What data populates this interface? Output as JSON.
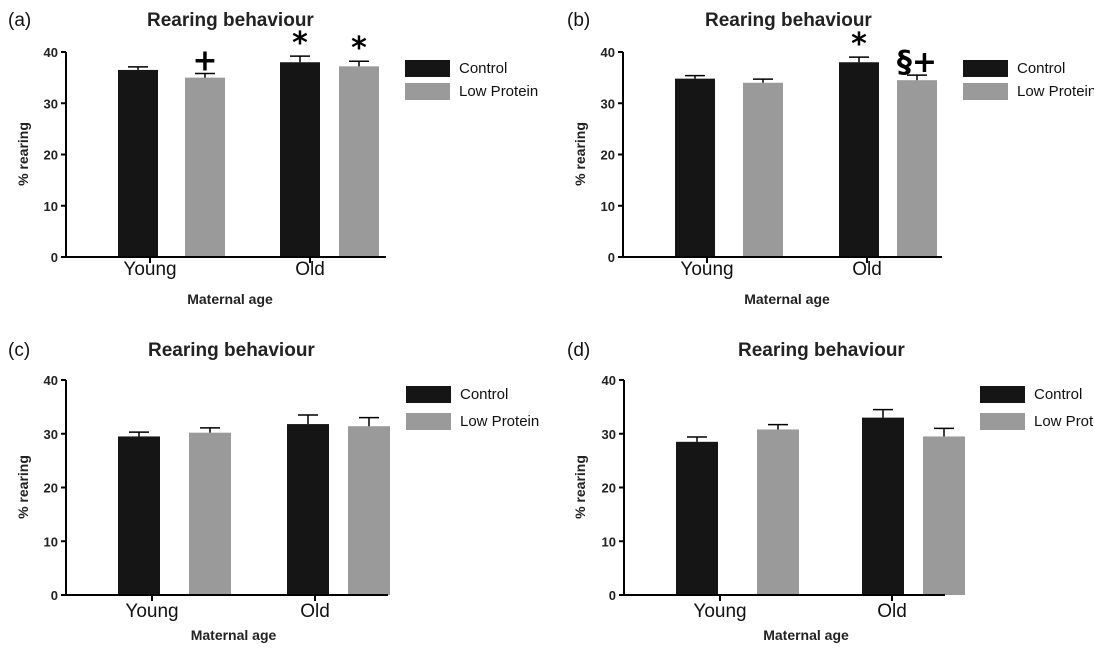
{
  "colors": {
    "control": "#151515",
    "low_protein": "#9a9a9a",
    "axis": "#000000"
  },
  "chart_data": [
    {
      "panel_label": "(a)",
      "type": "bar",
      "title": "Rearing behaviour",
      "xlabel": "Maternal age",
      "ylabel": "% rearing",
      "ylim": [
        0,
        40
      ],
      "yticks": [
        "0",
        "10",
        "20",
        "30",
        "40"
      ],
      "categories": [
        "Young",
        "Old"
      ],
      "series": [
        {
          "name": "Control",
          "values": [
            36.5,
            38.0
          ],
          "errors": [
            0.6,
            1.2
          ],
          "marks": [
            "",
            "*"
          ]
        },
        {
          "name": "Low Protein",
          "values": [
            35.0,
            37.2
          ],
          "errors": [
            0.8,
            1.0
          ],
          "marks": [
            "+",
            "*"
          ]
        }
      ],
      "legend": "right"
    },
    {
      "panel_label": "(b)",
      "type": "bar",
      "title": "Rearing behaviour",
      "xlabel": "Maternal age",
      "ylabel": "% rearing",
      "ylim": [
        0,
        40
      ],
      "yticks": [
        "0",
        "10",
        "20",
        "30",
        "40"
      ],
      "categories": [
        "Young",
        "Old"
      ],
      "series": [
        {
          "name": "Control",
          "values": [
            34.8,
            38.0
          ],
          "errors": [
            0.6,
            1.0
          ],
          "marks": [
            "",
            "*"
          ]
        },
        {
          "name": "Low Protein",
          "values": [
            34.0,
            34.5
          ],
          "errors": [
            0.7,
            1.0
          ],
          "marks": [
            "",
            "§+"
          ]
        }
      ],
      "legend": "right"
    },
    {
      "panel_label": "(c)",
      "type": "bar",
      "title": "Rearing behaviour",
      "xlabel": "Maternal age",
      "ylabel": "% rearing",
      "ylim": [
        0,
        40
      ],
      "yticks": [
        "0",
        "10",
        "20",
        "30",
        "40"
      ],
      "categories": [
        "Young",
        "Old"
      ],
      "series": [
        {
          "name": "Control",
          "values": [
            29.5,
            31.8
          ],
          "errors": [
            0.8,
            1.7
          ],
          "marks": [
            "",
            ""
          ]
        },
        {
          "name": "Low Protein",
          "values": [
            30.2,
            31.4
          ],
          "errors": [
            0.9,
            1.6
          ],
          "marks": [
            "",
            ""
          ]
        }
      ],
      "legend": "right"
    },
    {
      "panel_label": "(d)",
      "type": "bar",
      "title": "Rearing behaviour",
      "xlabel": "Maternal age",
      "ylabel": "% rearing",
      "ylim": [
        0,
        40
      ],
      "yticks": [
        "0",
        "10",
        "20",
        "30",
        "40"
      ],
      "categories": [
        "Young",
        "Old"
      ],
      "series": [
        {
          "name": "Control",
          "values": [
            28.5,
            33.0
          ],
          "errors": [
            0.9,
            1.5
          ],
          "marks": [
            "",
            ""
          ]
        },
        {
          "name": "Low Protein",
          "values": [
            30.8,
            29.5
          ],
          "errors": [
            0.9,
            1.5
          ],
          "marks": [
            "",
            ""
          ]
        }
      ],
      "legend": "right"
    }
  ]
}
